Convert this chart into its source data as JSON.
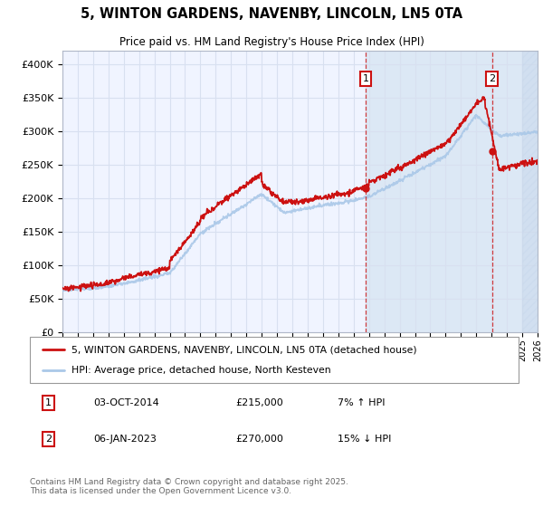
{
  "title": "5, WINTON GARDENS, NAVENBY, LINCOLN, LN5 0TA",
  "subtitle": "Price paid vs. HM Land Registry's House Price Index (HPI)",
  "ylim": [
    0,
    420000
  ],
  "yticks": [
    0,
    50000,
    100000,
    150000,
    200000,
    250000,
    300000,
    350000,
    400000
  ],
  "ytick_labels": [
    "£0",
    "£50K",
    "£100K",
    "£150K",
    "£200K",
    "£250K",
    "£300K",
    "£350K",
    "£400K"
  ],
  "x_start_year": 1995,
  "x_end_year": 2026,
  "hpi_color": "#aac8e8",
  "price_color": "#cc1111",
  "marker1_date": 2014.78,
  "marker1_price": 215000,
  "marker1_label": "03-OCT-2014",
  "marker1_value": "£215,000",
  "marker1_hpi": "7% ↑ HPI",
  "marker2_date": 2023.02,
  "marker2_price": 270000,
  "marker2_label": "06-JAN-2023",
  "marker2_value": "£270,000",
  "marker2_hpi": "15% ↓ HPI",
  "legend_line1": "5, WINTON GARDENS, NAVENBY, LINCOLN, LN5 0TA (detached house)",
  "legend_line2": "HPI: Average price, detached house, North Kesteven",
  "footer": "Contains HM Land Registry data © Crown copyright and database right 2025.\nThis data is licensed under the Open Government Licence v3.0.",
  "bg_color": "#ffffff",
  "plot_bg_color": "#f0f4ff",
  "grid_color": "#d8e0f0",
  "shade_color": "#dce8f5",
  "hatch_color": "#c8d8ec"
}
